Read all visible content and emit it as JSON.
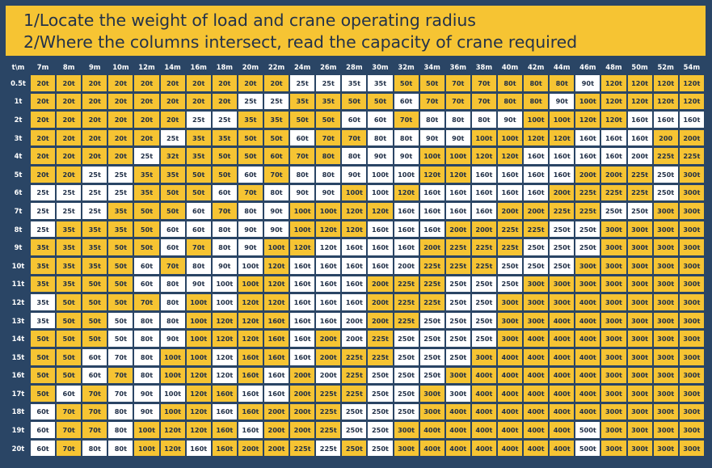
{
  "header": {
    "line1": "1/Locate the weight of load and crane operating radius",
    "line2": "2/Where the columns intersect, read the capacity of crane required"
  },
  "colors": {
    "background": "#2a4565",
    "highlight": "#f6c433",
    "plain": "#ffffff",
    "text": "#1f2e46"
  },
  "table": {
    "corner": "t\\m",
    "columns": [
      "7m",
      "8m",
      "9m",
      "10m",
      "12m",
      "14m",
      "16m",
      "18m",
      "20m",
      "22m",
      "24m",
      "26m",
      "28m",
      "30m",
      "32m",
      "34m",
      "36m",
      "38m",
      "40m",
      "42m",
      "44m",
      "46m",
      "48m",
      "50m",
      "52m",
      "54m"
    ],
    "rows": [
      {
        "load": "0.5t",
        "cells": [
          "20t",
          "20t",
          "20t",
          "20t",
          "20t",
          "20t",
          "20t",
          "20t",
          "20t",
          "20t",
          "25t",
          "25t",
          "35t",
          "35t",
          "50t",
          "50t",
          "70t",
          "70t",
          "80t",
          "80t",
          "80t",
          "90t",
          "120t",
          "120t",
          "120t",
          "120t"
        ],
        "hl": "YYYYYYYYYYWWWWYYYYYYYWYYYY"
      },
      {
        "load": "1t",
        "cells": [
          "20t",
          "20t",
          "20t",
          "20t",
          "20t",
          "20t",
          "20t",
          "20t",
          "25t",
          "25t",
          "35t",
          "35t",
          "50t",
          "50t",
          "60t",
          "70t",
          "70t",
          "70t",
          "80t",
          "80t",
          "90t",
          "100t",
          "120t",
          "120t",
          "120t",
          "120t"
        ],
        "hl": "YYYYYYYYWWYYYYWYYYYYWYYYYY"
      },
      {
        "load": "2t",
        "cells": [
          "20t",
          "20t",
          "20t",
          "20t",
          "20t",
          "20t",
          "25t",
          "25t",
          "35t",
          "35t",
          "50t",
          "50t",
          "60t",
          "60t",
          "70t",
          "80t",
          "80t",
          "80t",
          "90t",
          "100t",
          "100t",
          "120t",
          "120t",
          "160t",
          "160t",
          "160t"
        ],
        "hl": "YYYYYYWWYYYYWWYWWWWYYYYWWW"
      },
      {
        "load": "3t",
        "cells": [
          "20t",
          "20t",
          "20t",
          "20t",
          "20t",
          "25t",
          "35t",
          "35t",
          "50t",
          "50t",
          "60t",
          "70t",
          "70t",
          "80t",
          "80t",
          "90t",
          "90t",
          "100t",
          "100t",
          "120t",
          "120t",
          "160t",
          "160t",
          "160t",
          "200",
          "200t"
        ],
        "hl": "YYYYYWYYYYWYYWWWWYYYYWWWYY"
      },
      {
        "load": "4t",
        "cells": [
          "20t",
          "20t",
          "20t",
          "20t",
          "25t",
          "32t",
          "35t",
          "50t",
          "50t",
          "60t",
          "70t",
          "80t",
          "80t",
          "90t",
          "90t",
          "100t",
          "100t",
          "120t",
          "120t",
          "160t",
          "160t",
          "160t",
          "160t",
          "200t",
          "225t",
          "225t"
        ],
        "hl": "YYYYWYYYYYYYWWWYYYYWWWWWYY"
      },
      {
        "load": "5t",
        "cells": [
          "20t",
          "20t",
          "25t",
          "25t",
          "35t",
          "35t",
          "50t",
          "50t",
          "60t",
          "70t",
          "80t",
          "80t",
          "90t",
          "100t",
          "100t",
          "120t",
          "120t",
          "160t",
          "160t",
          "160t",
          "160t",
          "200t",
          "200t",
          "225t",
          "250t",
          "300t"
        ],
        "hl": "YYWWYYYYWYWWWWWYYWWWWYYYWY"
      },
      {
        "load": "6t",
        "cells": [
          "25t",
          "25t",
          "25t",
          "25t",
          "35t",
          "50t",
          "50t",
          "60t",
          "70t",
          "80t",
          "90t",
          "90t",
          "100t",
          "100t",
          "120t",
          "160t",
          "160t",
          "160t",
          "160t",
          "160t",
          "200t",
          "225t",
          "225t",
          "225t",
          "250t",
          "300t"
        ],
        "hl": "WWWWYYYWYWWWYWYWWWWWYYYYWY"
      },
      {
        "load": "7t",
        "cells": [
          "25t",
          "25t",
          "25t",
          "35t",
          "50t",
          "50t",
          "60t",
          "70t",
          "80t",
          "90t",
          "100t",
          "100t",
          "120t",
          "120t",
          "160t",
          "160t",
          "160t",
          "160t",
          "200t",
          "200t",
          "225t",
          "225t",
          "250t",
          "250t",
          "300t",
          "300t"
        ],
        "hl": "WWWYYYWYWWYYYYWWWWYYYYWWYY"
      },
      {
        "load": "8t",
        "cells": [
          "25t",
          "35t",
          "35t",
          "35t",
          "50t",
          "60t",
          "60t",
          "80t",
          "90t",
          "90t",
          "100t",
          "120t",
          "120t",
          "160t",
          "160t",
          "160t",
          "200t",
          "200t",
          "225t",
          "225t",
          "250t",
          "250t",
          "300t",
          "300t",
          "300t",
          "300t"
        ],
        "hl": "WYYYYWWWWWYYYWWWYYYYWWYYYY"
      },
      {
        "load": "9t",
        "cells": [
          "35t",
          "35t",
          "35t",
          "50t",
          "50t",
          "60t",
          "70t",
          "80t",
          "90t",
          "100t",
          "120t",
          "120t",
          "160t",
          "160t",
          "160t",
          "200t",
          "225t",
          "225t",
          "225t",
          "250t",
          "250t",
          "250t",
          "300t",
          "300t",
          "300t",
          "300t"
        ],
        "hl": "YYYYYWYWWYYWWWWYYYYWWWYYYY"
      },
      {
        "load": "10t",
        "cells": [
          "35t",
          "35t",
          "35t",
          "50t",
          "60t",
          "70t",
          "80t",
          "90t",
          "100t",
          "120t",
          "160t",
          "160t",
          "160t",
          "160t",
          "200t",
          "225t",
          "225t",
          "225t",
          "250t",
          "250t",
          "250t",
          "300t",
          "300t",
          "300t",
          "300t",
          "300t"
        ],
        "hl": "YYYYWYWWWYWWWWWYYYWWWYYYYY"
      },
      {
        "load": "11t",
        "cells": [
          "35t",
          "35t",
          "50t",
          "50t",
          "60t",
          "80t",
          "90t",
          "100t",
          "100t",
          "120t",
          "160t",
          "160t",
          "160t",
          "200t",
          "225t",
          "225t",
          "250t",
          "250t",
          "250t",
          "300t",
          "300t",
          "300t",
          "300t",
          "300t",
          "300t",
          "300t"
        ],
        "hl": "YYYYWWWWYYWWWYYYWWWYYYYYYY"
      },
      {
        "load": "12t",
        "cells": [
          "35t",
          "50t",
          "50t",
          "50t",
          "70t",
          "80t",
          "100t",
          "100t",
          "120t",
          "120t",
          "160t",
          "160t",
          "160t",
          "200t",
          "225t",
          "225t",
          "250t",
          "250t",
          "300t",
          "300t",
          "300t",
          "400t",
          "300t",
          "300t",
          "300t",
          "300t"
        ],
        "hl": "WYYYYWYWYYWWWYYYWWYYYYYYYY"
      },
      {
        "load": "13t",
        "cells": [
          "35t",
          "50t",
          "50t",
          "50t",
          "80t",
          "80t",
          "100t",
          "120t",
          "120t",
          "160t",
          "160t",
          "160t",
          "200t",
          "200t",
          "225t",
          "250t",
          "250t",
          "250t",
          "300t",
          "300t",
          "400t",
          "400t",
          "300t",
          "300t",
          "300t",
          "300t"
        ],
        "hl": "WYYWWWYYYYWWWYYWWWYYYYYYYY"
      },
      {
        "load": "14t",
        "cells": [
          "50t",
          "50t",
          "50t",
          "50t",
          "80t",
          "90t",
          "100t",
          "120t",
          "120t",
          "160t",
          "160t",
          "200t",
          "200t",
          "225t",
          "250t",
          "250t",
          "250t",
          "250t",
          "300t",
          "400t",
          "400t",
          "400t",
          "300t",
          "300t",
          "300t",
          "300t"
        ],
        "hl": "YYYWWWYYYYWYWYWWWWYYYYYYYY"
      },
      {
        "load": "15t",
        "cells": [
          "50t",
          "50t",
          "60t",
          "70t",
          "80t",
          "100t",
          "100t",
          "120t",
          "160t",
          "160t",
          "160t",
          "200t",
          "225t",
          "225t",
          "250t",
          "250t",
          "250t",
          "300t",
          "400t",
          "400t",
          "400t",
          "400t",
          "300t",
          "300t",
          "300t",
          "300t"
        ],
        "hl": "YYWWWYYWYYWYYYWWWYYYYYYYYY"
      },
      {
        "load": "16t",
        "cells": [
          "50t",
          "50t",
          "60t",
          "70t",
          "80t",
          "100t",
          "120t",
          "120t",
          "160t",
          "160t",
          "200t",
          "200t",
          "225t",
          "250t",
          "250t",
          "250t",
          "300t",
          "400t",
          "400t",
          "400t",
          "400t",
          "400t",
          "300t",
          "300t",
          "300t",
          "300t"
        ],
        "hl": "YYWYWYYWYWYWYWWWYYYYYYYYYY"
      },
      {
        "load": "17t",
        "cells": [
          "50t",
          "60t",
          "70t",
          "70t",
          "90t",
          "100t",
          "120t",
          "160t",
          "160t",
          "160t",
          "200t",
          "225t",
          "225t",
          "250t",
          "250t",
          "300t",
          "300t",
          "400t",
          "400t",
          "400t",
          "400t",
          "400t",
          "300t",
          "300t",
          "300t",
          "300t"
        ],
        "hl": "YWYWWWYYWWYYYWWYWYYYYYYYYY"
      },
      {
        "load": "18t",
        "cells": [
          "60t",
          "70t",
          "70t",
          "80t",
          "90t",
          "100t",
          "120t",
          "160t",
          "160t",
          "200t",
          "200t",
          "225t",
          "250t",
          "250t",
          "250t",
          "300t",
          "400t",
          "400t",
          "400t",
          "400t",
          "400t",
          "400t",
          "300t",
          "300t",
          "300t",
          "300t"
        ],
        "hl": "WYYWWYYWYYYYWWWYYYYYYYYYYY"
      },
      {
        "load": "19t",
        "cells": [
          "60t",
          "70t",
          "70t",
          "80t",
          "100t",
          "120t",
          "120t",
          "160t",
          "160t",
          "200t",
          "200t",
          "225t",
          "250t",
          "250t",
          "300t",
          "400t",
          "400t",
          "400t",
          "400t",
          "400t",
          "400t",
          "500t",
          "300t",
          "300t",
          "300t",
          "300t"
        ],
        "hl": "WYYWYYYYWYYYWWYYYYYYYWYYYY"
      },
      {
        "load": "20t",
        "cells": [
          "60t",
          "70t",
          "80t",
          "80t",
          "100t",
          "120t",
          "160t",
          "160t",
          "200t",
          "200t",
          "225t",
          "225t",
          "250t",
          "250t",
          "300t",
          "400t",
          "400t",
          "400t",
          "400t",
          "400t",
          "400t",
          "500t",
          "300t",
          "300t",
          "300t",
          "300t"
        ],
        "hl": "WYWWYYWYYYYWYWYYYYYYYWYYYY"
      }
    ]
  }
}
